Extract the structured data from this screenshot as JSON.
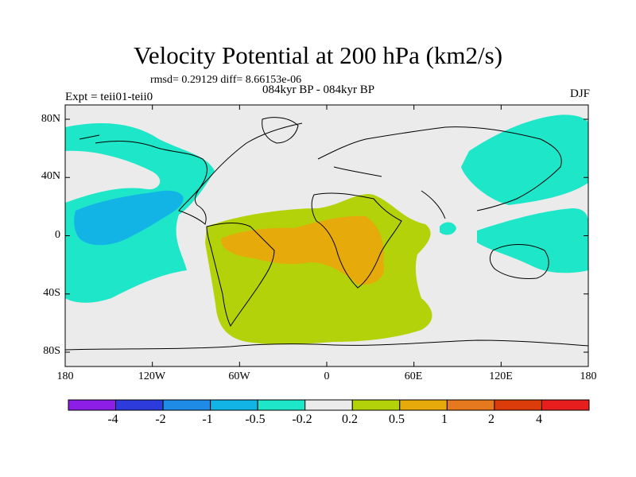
{
  "title": "Velocity Potential at 200 hPa (km2/s)",
  "stats": "rmsd= 0.29129 diff= 8.66153e-06",
  "subtitle": "084kyr BP - 084kyr BP",
  "left_label": "Expt = teii01-teii0",
  "right_label": "DJF",
  "lat_ticks": [
    "80N",
    "40N",
    "0",
    "40S",
    "80S"
  ],
  "lon_ticks": [
    "180",
    "120W",
    "60W",
    "0",
    "60E",
    "120E",
    "180"
  ],
  "colorbar": {
    "colors": [
      "#8c1ee6",
      "#2e3bdc",
      "#1e8ce6",
      "#12b4e6",
      "#1ee6c8",
      "#ebebeb",
      "#b4d20a",
      "#e6aa0a",
      "#e6781e",
      "#dc3c0a",
      "#e61e1e"
    ],
    "labels": [
      "-4",
      "-2",
      "-1",
      "-0.5",
      "-0.2",
      "0.2",
      "0.5",
      "1",
      "2",
      "4"
    ]
  },
  "field_colors": {
    "land_bg": "#ebebeb",
    "neg_light": "#1ee6c8",
    "neg_mid": "#12b4e6",
    "pos_light": "#b4d20a",
    "pos_mid": "#e6aa0a",
    "coast": "#000000"
  }
}
